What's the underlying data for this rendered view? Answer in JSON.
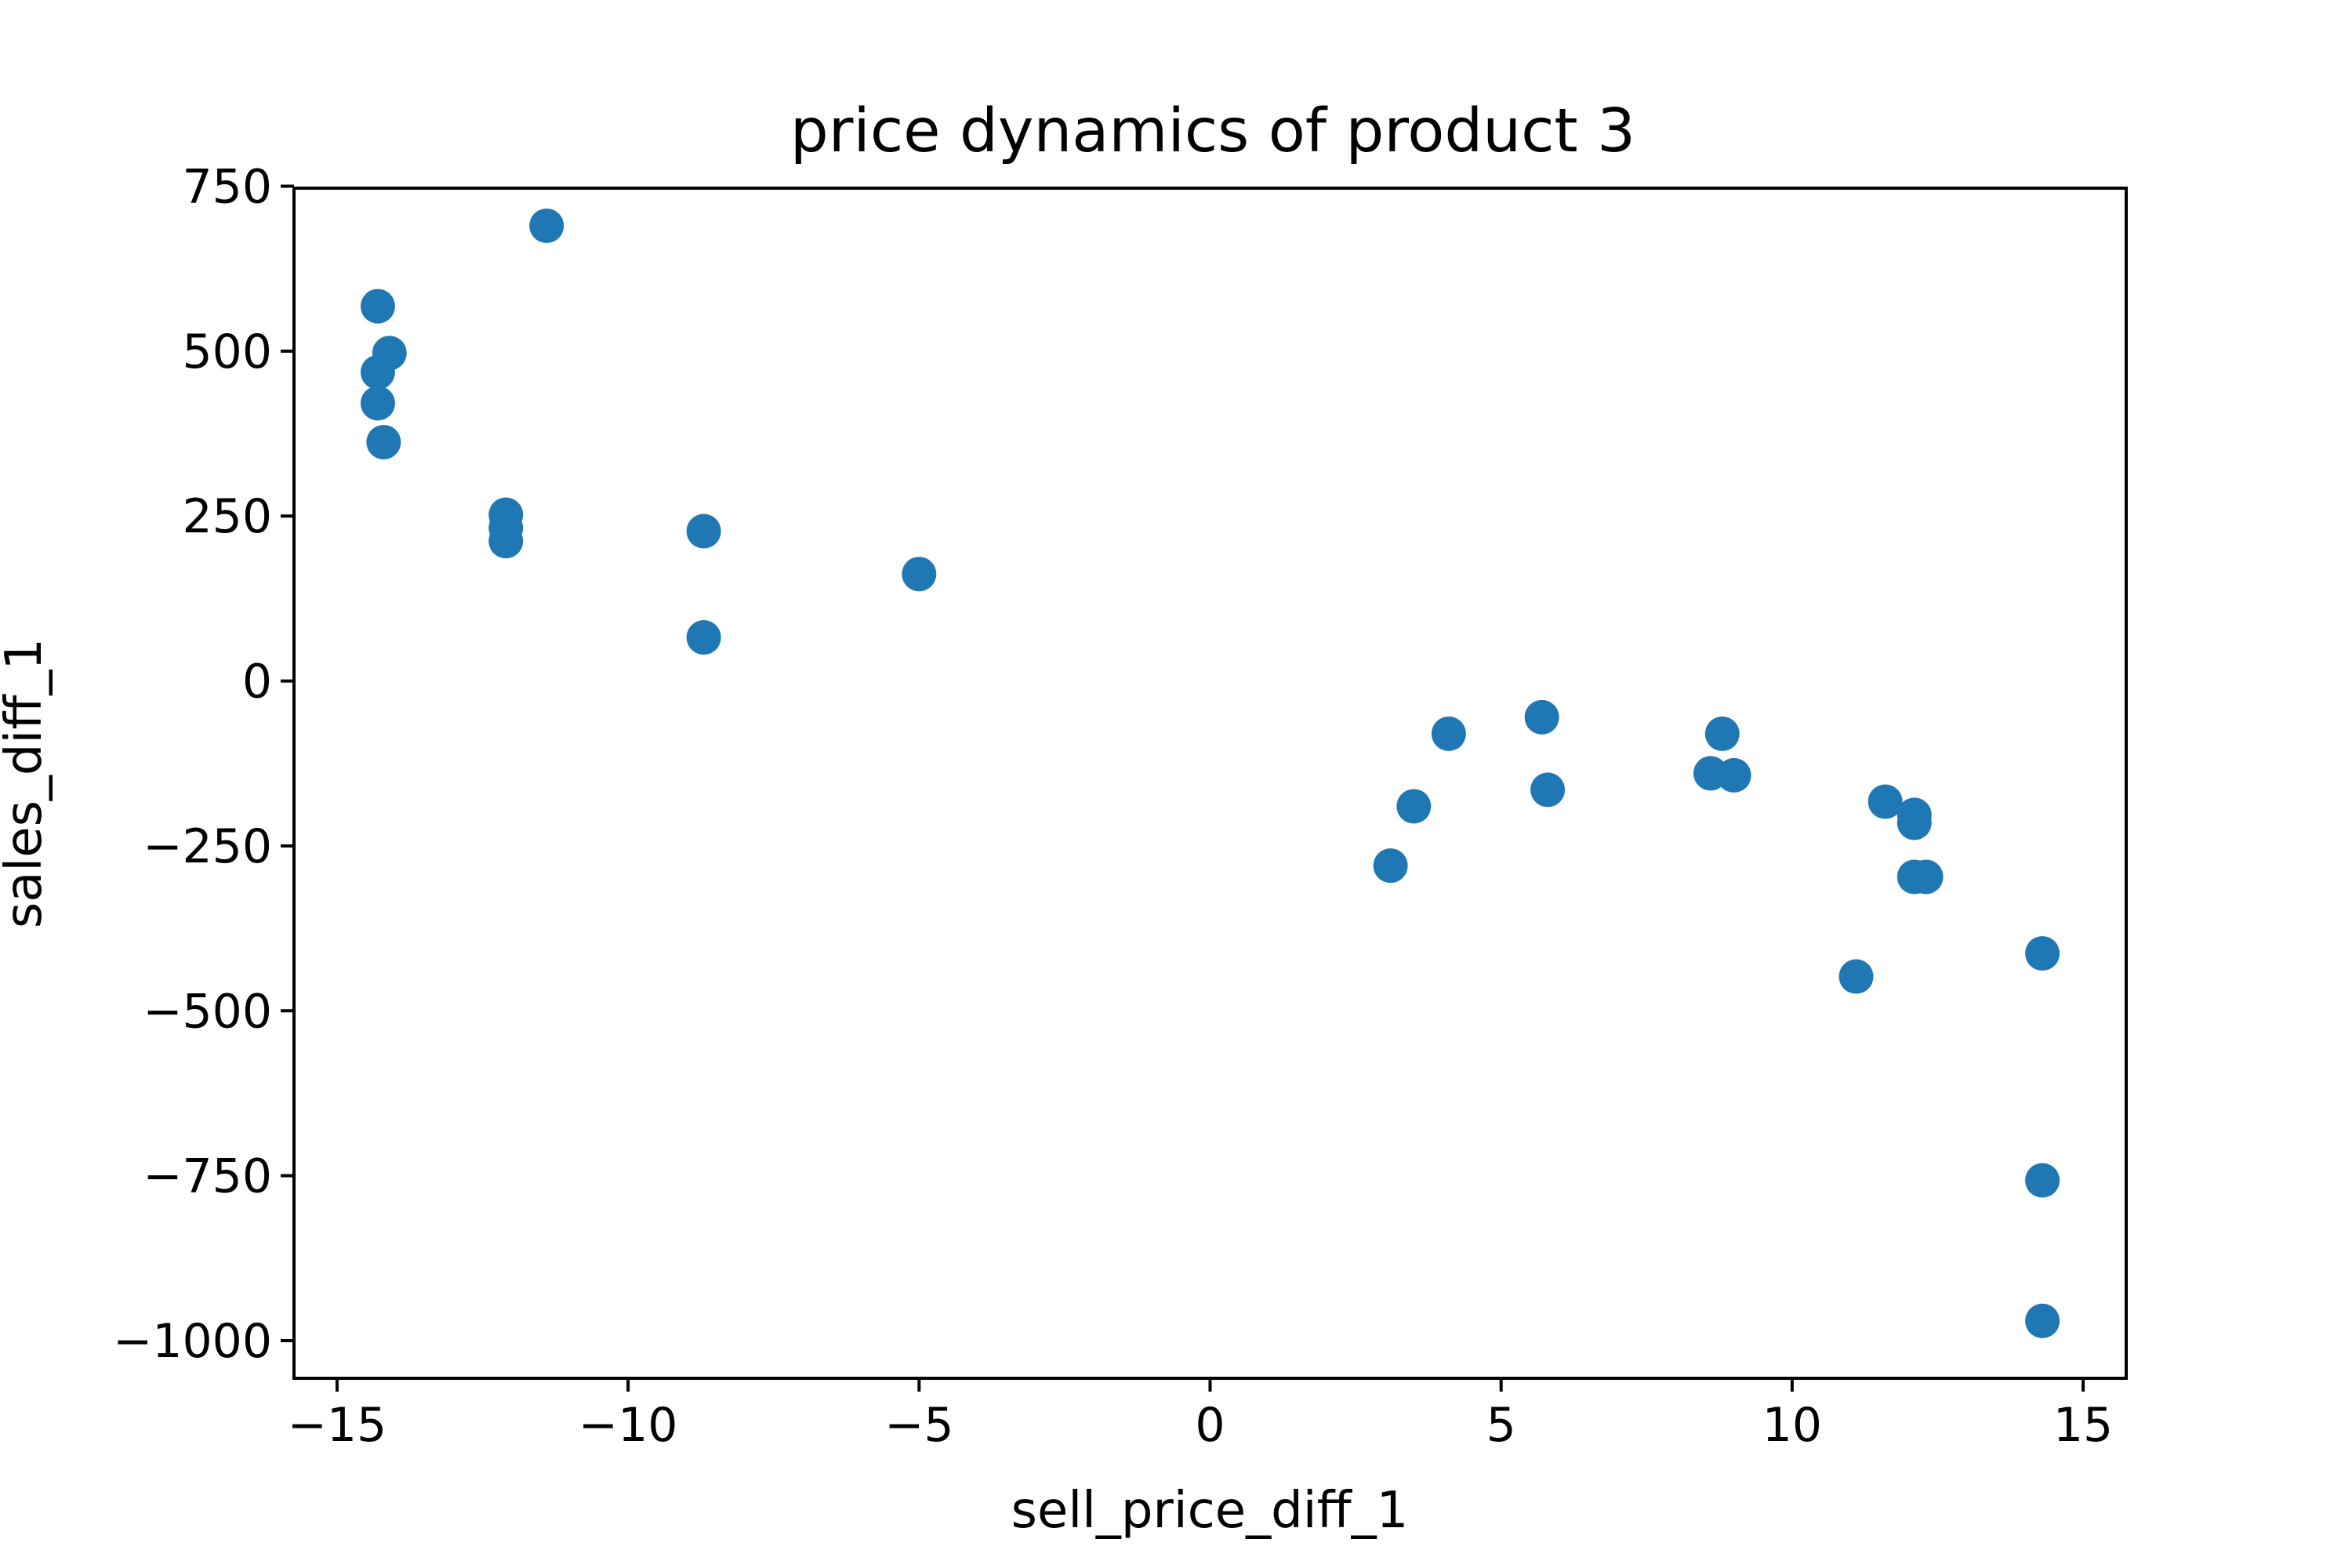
{
  "chart_data": {
    "type": "scatter",
    "title": "price dynamics of product 3",
    "xlabel": "sell_price_diff_1",
    "ylabel": "sales_diff_1",
    "xlim": [
      -15.74,
      15.74
    ],
    "ylim": [
      -1057,
      747
    ],
    "xticks": [
      -15,
      -10,
      -5,
      0,
      5,
      10,
      15
    ],
    "xtick_labels": [
      "−15",
      "−10",
      "−5",
      "0",
      "5",
      "10",
      "15"
    ],
    "yticks": [
      750,
      500,
      250,
      0,
      -250,
      -500,
      -750,
      -1000
    ],
    "ytick_labels": [
      "750",
      "500",
      "250",
      "0",
      "−250",
      "−500",
      "−750",
      "−1000"
    ],
    "grid": false,
    "marker_color": "#1f77b4",
    "series": [
      {
        "points": [
          {
            "x": -14.3,
            "y": 568
          },
          {
            "x": -14.1,
            "y": 497
          },
          {
            "x": -14.3,
            "y": 468
          },
          {
            "x": -14.3,
            "y": 421
          },
          {
            "x": -14.2,
            "y": 362
          },
          {
            "x": -11.4,
            "y": 690
          },
          {
            "x": -12.1,
            "y": 252
          },
          {
            "x": -12.1,
            "y": 232
          },
          {
            "x": -12.1,
            "y": 212
          },
          {
            "x": -8.7,
            "y": 227
          },
          {
            "x": -8.7,
            "y": 66
          },
          {
            "x": -5.0,
            "y": 162
          },
          {
            "x": 3.1,
            "y": -280
          },
          {
            "x": 3.5,
            "y": -190
          },
          {
            "x": 4.1,
            "y": -80
          },
          {
            "x": 5.7,
            "y": -55
          },
          {
            "x": 5.8,
            "y": -165
          },
          {
            "x": 8.6,
            "y": -140
          },
          {
            "x": 8.8,
            "y": -80
          },
          {
            "x": 9.0,
            "y": -143
          },
          {
            "x": 11.1,
            "y": -448
          },
          {
            "x": 11.6,
            "y": -183
          },
          {
            "x": 12.1,
            "y": -203
          },
          {
            "x": 12.1,
            "y": -215
          },
          {
            "x": 12.1,
            "y": -297
          },
          {
            "x": 12.3,
            "y": -297
          },
          {
            "x": 14.3,
            "y": -413
          },
          {
            "x": 14.3,
            "y": -757
          },
          {
            "x": 14.3,
            "y": -970
          }
        ]
      }
    ]
  }
}
